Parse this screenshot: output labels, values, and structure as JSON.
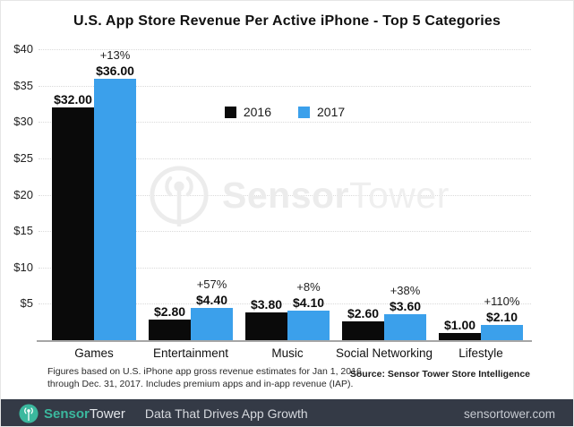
{
  "title": "U.S. App Store Revenue Per Active iPhone - Top 5 Categories",
  "chart_data": {
    "type": "bar",
    "title": "U.S. App Store Revenue Per Active iPhone - Top 5 Categories",
    "categories": [
      "Games",
      "Entertainment",
      "Music",
      "Social Networking",
      "Lifestyle"
    ],
    "series": [
      {
        "name": "2016",
        "color": "#0a0a0a",
        "values": [
          32.0,
          2.8,
          3.8,
          2.6,
          1.0
        ],
        "labels": [
          "$32.00",
          "$2.80",
          "$3.80",
          "$2.60",
          "$1.00"
        ]
      },
      {
        "name": "2017",
        "color": "#3ba0eb",
        "values": [
          36.0,
          4.4,
          4.1,
          3.6,
          2.1
        ],
        "labels": [
          "$36.00",
          "$4.40",
          "$4.10",
          "$3.60",
          "$2.10"
        ]
      }
    ],
    "pct_change": [
      "+13%",
      "+57%",
      "+8%",
      "+38%",
      "+110%"
    ],
    "xlabel": "",
    "ylabel": "",
    "ylim": [
      0,
      40
    ],
    "ytick_step": 5,
    "ytick_labels": [
      "$5",
      "$10",
      "$15",
      "$20",
      "$25",
      "$30",
      "$35",
      "$40"
    ],
    "grid": "horizontal-dotted",
    "legend_position": "top-center"
  },
  "watermark": {
    "brand_bold": "Sensor",
    "brand_light": "Tower"
  },
  "footnote": {
    "line1": "Figures based on U.S. iPhone app gross revenue estimates for Jan 1, 2016",
    "line2": "through Dec. 31, 2017. Includes premium apps and in-app revenue (IAP)."
  },
  "source": "Source: Sensor Tower Store Intelligence",
  "footer": {
    "brand_bold": "Sensor",
    "brand_light": "Tower",
    "tagline": "Data That Drives App Growth",
    "website": "sensortower.com",
    "accent_color": "#3bb89e",
    "background_color": "#343a46"
  }
}
